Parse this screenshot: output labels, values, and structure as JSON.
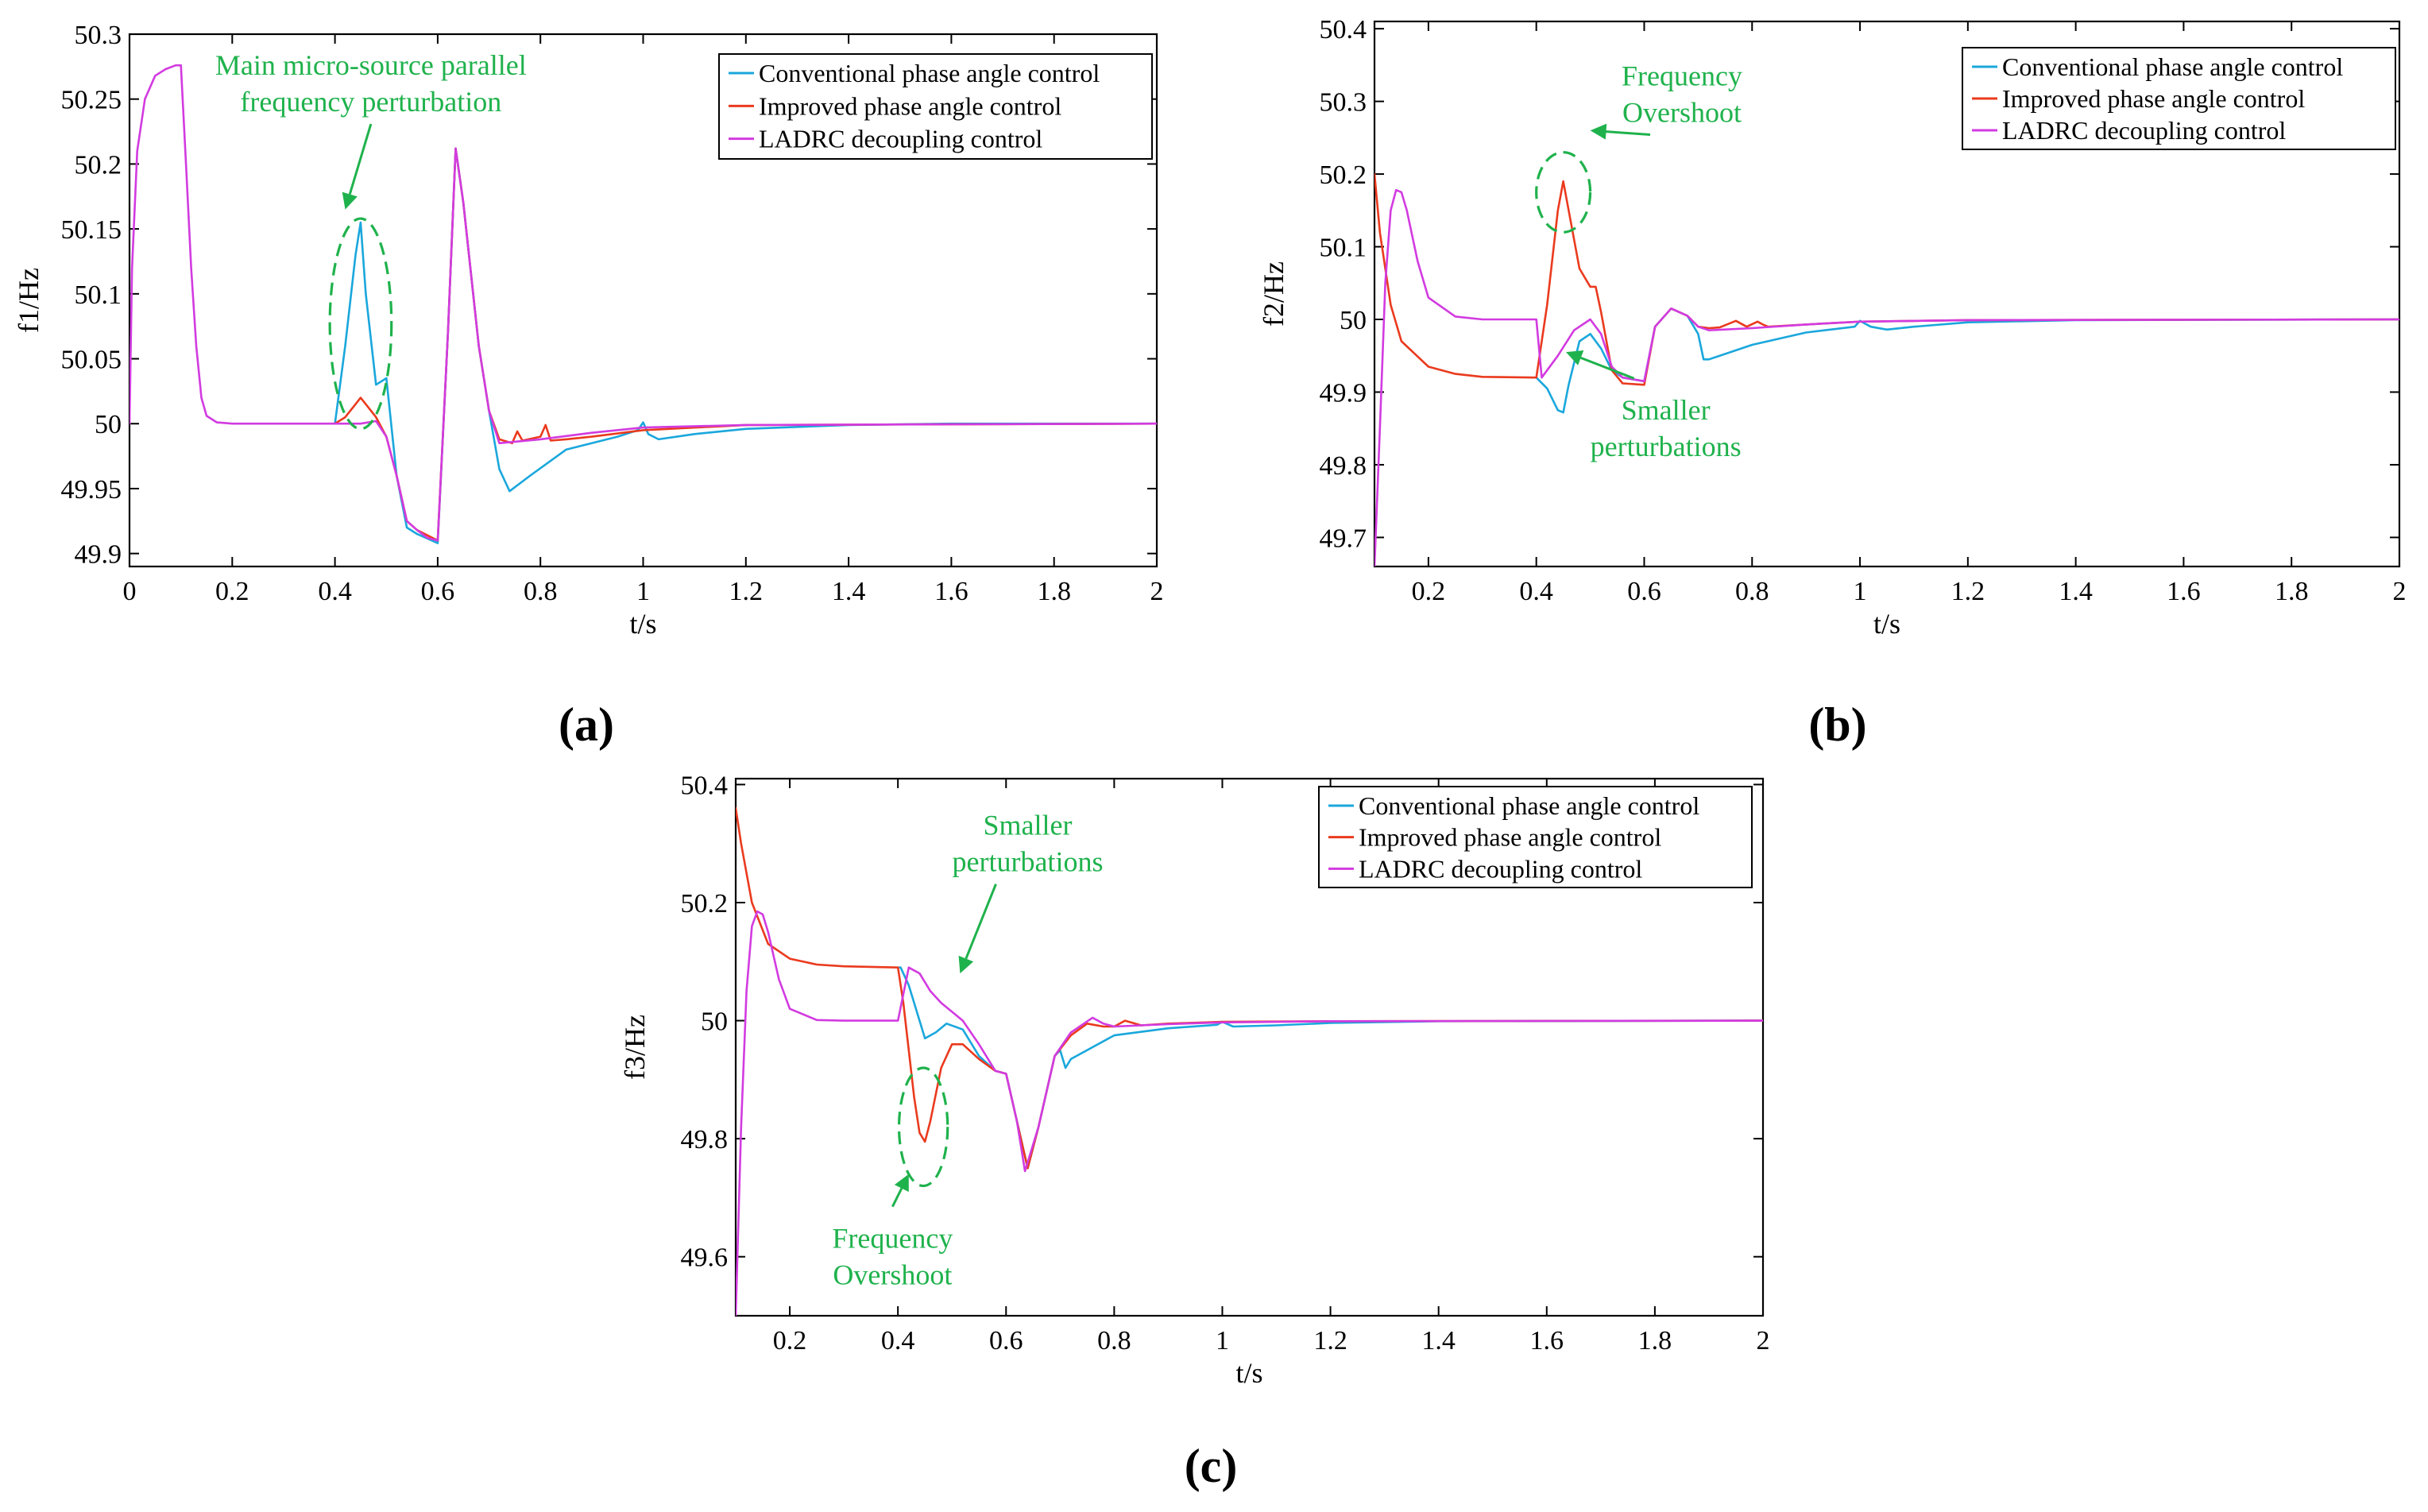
{
  "colors": {
    "conventional": "#1aa7dc",
    "improved": "#ea3a1e",
    "ladrc": "#d23be0",
    "annotation": "#1fb24c",
    "axis": "#000000"
  },
  "chart_data": [
    {
      "type": "line",
      "panel_label": "(a)",
      "xlabel": "t/s",
      "ylabel": "f1/Hz",
      "xlim": [
        0,
        2
      ],
      "ylim": [
        49.89,
        50.3
      ],
      "xticks": [
        0,
        0.2,
        0.4,
        0.6,
        0.8,
        1,
        1.2,
        1.4,
        1.6,
        1.8,
        2
      ],
      "xtick_labels": [
        "0",
        "0.2",
        "0.4",
        "0.6",
        "0.8",
        "1",
        "1.2",
        "1.4",
        "1.6",
        "1.8",
        "2"
      ],
      "yticks": [
        49.9,
        49.95,
        50,
        50.05,
        50.1,
        50.15,
        50.2,
        50.25,
        50.3
      ],
      "ytick_labels": [
        "49.9",
        "49.95",
        "50",
        "50.05",
        "50.1",
        "50.15",
        "50.2",
        "50.25",
        "50.3"
      ],
      "legend": {
        "position": "top-right",
        "entries": [
          "Conventional phase angle control",
          "Improved phase angle control",
          "LADRC decoupling control"
        ]
      },
      "annotations": [
        {
          "lines": [
            "Main micro-source parallel",
            "frequency perturbation"
          ],
          "text_x": 0.47,
          "text_y": 50.262,
          "target_x": 0.42,
          "target_y": 50.165,
          "ellipse": {
            "cx": 0.45,
            "cy": 50.077,
            "rx": 0.06,
            "ry": 0.081
          }
        }
      ],
      "series": [
        {
          "name": "Conventional phase angle control",
          "color_key": "conventional",
          "x": [
            0.4,
            0.42,
            0.44,
            0.45,
            0.46,
            0.48,
            0.5,
            0.52,
            0.54,
            0.56,
            0.6,
            0.62,
            0.635,
            0.65,
            0.68,
            0.7,
            0.72,
            0.74,
            0.78,
            0.85,
            0.95,
            0.99,
            1.0,
            1.01,
            1.03,
            1.1,
            1.2,
            1.4,
            1.6,
            2.0
          ],
          "y": [
            50.0,
            50.06,
            50.13,
            50.155,
            50.1,
            50.03,
            50.035,
            49.96,
            49.92,
            49.915,
            49.908,
            50.07,
            50.212,
            50.17,
            50.06,
            50.01,
            49.965,
            49.948,
            49.96,
            49.98,
            49.99,
            49.995,
            50.001,
            49.992,
            49.988,
            49.992,
            49.996,
            49.999,
            50.0,
            50.0
          ]
        },
        {
          "name": "Improved phase angle control",
          "color_key": "improved",
          "x": [
            0.4,
            0.42,
            0.44,
            0.45,
            0.46,
            0.48,
            0.5,
            0.52,
            0.54,
            0.56,
            0.6,
            0.62,
            0.635,
            0.65,
            0.68,
            0.7,
            0.72,
            0.745,
            0.755,
            0.765,
            0.8,
            0.81,
            0.82,
            0.85,
            0.9,
            1.0,
            1.2,
            2.0
          ],
          "y": [
            50.0,
            50.005,
            50.015,
            50.02,
            50.015,
            50.005,
            49.99,
            49.96,
            49.925,
            49.918,
            49.91,
            50.07,
            50.212,
            50.17,
            50.06,
            50.01,
            49.988,
            49.985,
            49.994,
            49.987,
            49.99,
            49.999,
            49.987,
            49.988,
            49.99,
            49.995,
            49.999,
            50.0
          ]
        },
        {
          "name": "LADRC decoupling control",
          "color_key": "ladrc",
          "x": [
            0,
            0.005,
            0.015,
            0.03,
            0.05,
            0.07,
            0.09,
            0.1,
            0.11,
            0.12,
            0.13,
            0.14,
            0.15,
            0.17,
            0.2,
            0.4,
            0.45,
            0.48,
            0.5,
            0.52,
            0.54,
            0.56,
            0.58,
            0.6,
            0.62,
            0.635,
            0.65,
            0.68,
            0.7,
            0.72,
            0.8,
            0.9,
            1.0,
            1.2,
            2.0
          ],
          "y": [
            50.0,
            50.12,
            50.21,
            50.25,
            50.268,
            50.273,
            50.276,
            50.276,
            50.2,
            50.12,
            50.06,
            50.02,
            50.006,
            50.001,
            50.0,
            50.0,
            50.0,
            50.002,
            49.99,
            49.96,
            49.925,
            49.918,
            49.912,
            49.91,
            50.07,
            50.212,
            50.17,
            50.06,
            50.01,
            49.985,
            49.988,
            49.993,
            49.997,
            49.999,
            50.0
          ]
        }
      ]
    },
    {
      "type": "line",
      "panel_label": "(b)",
      "xlabel": "t/s",
      "ylabel": "f2/Hz",
      "xlim": [
        0.1,
        2
      ],
      "ylim": [
        49.66,
        50.41
      ],
      "xticks": [
        0.2,
        0.4,
        0.6,
        0.8,
        1,
        1.2,
        1.4,
        1.6,
        1.8,
        2
      ],
      "xtick_labels": [
        "0.2",
        "0.4",
        "0.6",
        "0.8",
        "1",
        "1.2",
        "1.4",
        "1.6",
        "1.8",
        "2"
      ],
      "yticks": [
        49.7,
        49.8,
        49.9,
        50,
        50.1,
        50.2,
        50.3,
        50.4
      ],
      "ytick_labels": [
        "49.7",
        "49.8",
        "49.9",
        "50",
        "50.1",
        "50.2",
        "50.3",
        "50.4"
      ],
      "legend": {
        "position": "top-right",
        "entries": [
          "Conventional phase angle control",
          "Improved phase angle control",
          "LADRC decoupling control"
        ]
      },
      "annotations": [
        {
          "lines": [
            "Frequency",
            "Overshoot"
          ],
          "text_x": 0.67,
          "text_y": 50.31,
          "target_x": 0.5,
          "target_y": 50.26,
          "ellipse": {
            "cx": 0.45,
            "cy": 50.175,
            "rx": 0.05,
            "ry": 0.055
          }
        },
        {
          "lines": [
            "Smaller",
            "perturbations"
          ],
          "text_x": 0.64,
          "text_y": 49.85,
          "target_x": 0.455,
          "target_y": 49.955
        }
      ],
      "series": [
        {
          "name": "Conventional phase angle control",
          "color_key": "conventional",
          "x": [
            0.4,
            0.42,
            0.44,
            0.45,
            0.46,
            0.48,
            0.5,
            0.52,
            0.54,
            0.56,
            0.6,
            0.62,
            0.65,
            0.68,
            0.7,
            0.71,
            0.72,
            0.8,
            0.9,
            0.99,
            1.0,
            1.02,
            1.05,
            1.1,
            1.2,
            1.4,
            2.0
          ],
          "y": [
            49.92,
            49.905,
            49.875,
            49.872,
            49.91,
            49.97,
            49.98,
            49.96,
            49.93,
            49.92,
            49.915,
            49.99,
            50.015,
            50.005,
            49.98,
            49.945,
            49.945,
            49.965,
            49.982,
            49.99,
            49.998,
            49.99,
            49.986,
            49.99,
            49.996,
            49.999,
            50.0
          ]
        },
        {
          "name": "Improved phase angle control",
          "color_key": "improved",
          "x": [
            0.1,
            0.11,
            0.13,
            0.15,
            0.2,
            0.25,
            0.3,
            0.4,
            0.42,
            0.44,
            0.45,
            0.46,
            0.48,
            0.5,
            0.51,
            0.52,
            0.54,
            0.56,
            0.6,
            0.62,
            0.65,
            0.68,
            0.7,
            0.72,
            0.74,
            0.77,
            0.79,
            0.81,
            0.82,
            0.83,
            0.9,
            1.0,
            1.2,
            2.0
          ],
          "y": [
            50.2,
            50.12,
            50.02,
            49.97,
            49.935,
            49.925,
            49.921,
            49.92,
            50.02,
            50.15,
            50.19,
            50.15,
            50.07,
            50.045,
            50.045,
            50.01,
            49.93,
            49.912,
            49.91,
            49.99,
            50.015,
            50.005,
            49.99,
            49.988,
            49.989,
            49.998,
            49.99,
            49.997,
            49.993,
            49.99,
            49.993,
            49.997,
            49.999,
            50.0
          ]
        },
        {
          "name": "LADRC decoupling control",
          "color_key": "ladrc",
          "x": [
            0.1,
            0.11,
            0.12,
            0.13,
            0.14,
            0.15,
            0.16,
            0.18,
            0.2,
            0.25,
            0.3,
            0.4,
            0.41,
            0.44,
            0.47,
            0.5,
            0.52,
            0.54,
            0.56,
            0.6,
            0.62,
            0.65,
            0.68,
            0.7,
            0.72,
            0.8,
            0.9,
            1.0,
            1.2,
            2.0
          ],
          "y": [
            49.66,
            49.85,
            50.05,
            50.15,
            50.178,
            50.175,
            50.15,
            50.08,
            50.03,
            50.004,
            50.0,
            50.0,
            49.92,
            49.95,
            49.985,
            50.0,
            49.98,
            49.935,
            49.92,
            49.915,
            49.99,
            50.015,
            50.005,
            49.99,
            49.985,
            49.988,
            49.993,
            49.997,
            49.999,
            50.0
          ]
        }
      ]
    },
    {
      "type": "line",
      "panel_label": "(c)",
      "xlabel": "t/s",
      "ylabel": "f3/Hz",
      "xlim": [
        0.1,
        2
      ],
      "ylim": [
        49.5,
        50.41
      ],
      "xticks": [
        0.2,
        0.4,
        0.6,
        0.8,
        1,
        1.2,
        1.4,
        1.6,
        1.8,
        2
      ],
      "xtick_labels": [
        "0.2",
        "0.4",
        "0.6",
        "0.8",
        "1",
        "1.2",
        "1.4",
        "1.6",
        "1.8",
        "2"
      ],
      "yticks": [
        49.6,
        49.8,
        50,
        50.2,
        50.4
      ],
      "ytick_labels": [
        "49.6",
        "49.8",
        "50",
        "50.2",
        "50.4"
      ],
      "legend": {
        "position": "top-right",
        "entries": [
          "Conventional phase angle control",
          "Improved phase angle control",
          "LADRC decoupling control"
        ]
      },
      "annotations": [
        {
          "lines": [
            "Smaller",
            "perturbations"
          ],
          "text_x": 0.64,
          "text_y": 50.3,
          "target_x": 0.515,
          "target_y": 50.08
        },
        {
          "lines": [
            "Frequency",
            "Overshoot"
          ],
          "text_x": 0.39,
          "text_y": 49.6,
          "target_x": 0.42,
          "target_y": 49.74,
          "ellipse": {
            "cx": 0.447,
            "cy": 49.82,
            "rx": 0.045,
            "ry": 0.1
          }
        }
      ],
      "series": [
        {
          "name": "Conventional phase angle control",
          "color_key": "conventional",
          "x": [
            0.4,
            0.405,
            0.42,
            0.44,
            0.45,
            0.47,
            0.49,
            0.52,
            0.55,
            0.58,
            0.6,
            0.62,
            0.64,
            0.66,
            0.69,
            0.7,
            0.71,
            0.72,
            0.8,
            0.9,
            0.99,
            1.0,
            1.02,
            1.1,
            1.2,
            1.4,
            2.0
          ],
          "y": [
            50.09,
            50.09,
            50.06,
            50.0,
            49.97,
            49.98,
            49.995,
            49.985,
            49.94,
            49.915,
            49.91,
            49.83,
            49.75,
            49.82,
            49.94,
            49.95,
            49.92,
            49.935,
            49.975,
            49.987,
            49.993,
            49.998,
            49.99,
            49.992,
            49.996,
            49.999,
            50.0
          ]
        },
        {
          "name": "Improved phase angle control",
          "color_key": "improved",
          "x": [
            0.1,
            0.11,
            0.13,
            0.16,
            0.2,
            0.25,
            0.3,
            0.4,
            0.41,
            0.43,
            0.44,
            0.45,
            0.46,
            0.48,
            0.5,
            0.52,
            0.55,
            0.58,
            0.6,
            0.62,
            0.64,
            0.66,
            0.69,
            0.72,
            0.75,
            0.78,
            0.8,
            0.82,
            0.85,
            0.9,
            1.0,
            1.2,
            2.0
          ],
          "y": [
            50.36,
            50.3,
            50.2,
            50.13,
            50.105,
            50.095,
            50.092,
            50.09,
            50.03,
            49.87,
            49.81,
            49.795,
            49.83,
            49.92,
            49.96,
            49.96,
            49.935,
            49.915,
            49.91,
            49.83,
            49.75,
            49.82,
            49.94,
            49.975,
            49.995,
            49.99,
            49.99,
            50.0,
            49.992,
            49.995,
            49.998,
            49.999,
            50.0
          ]
        },
        {
          "name": "LADRC decoupling control",
          "color_key": "ladrc",
          "x": [
            0.1,
            0.11,
            0.12,
            0.13,
            0.14,
            0.15,
            0.16,
            0.18,
            0.2,
            0.25,
            0.3,
            0.4,
            0.42,
            0.44,
            0.46,
            0.48,
            0.5,
            0.52,
            0.55,
            0.58,
            0.6,
            0.62,
            0.635,
            0.66,
            0.69,
            0.72,
            0.76,
            0.78,
            0.8,
            0.9,
            1.0,
            1.2,
            2.0
          ],
          "y": [
            49.5,
            49.82,
            50.05,
            50.16,
            50.185,
            50.18,
            50.15,
            50.07,
            50.02,
            50.001,
            50.0,
            50.0,
            50.09,
            50.08,
            50.05,
            50.03,
            50.015,
            50.0,
            49.96,
            49.915,
            49.91,
            49.83,
            49.745,
            49.82,
            49.94,
            49.98,
            50.005,
            49.995,
            49.99,
            49.994,
            49.997,
            49.999,
            50.0
          ]
        }
      ]
    }
  ]
}
